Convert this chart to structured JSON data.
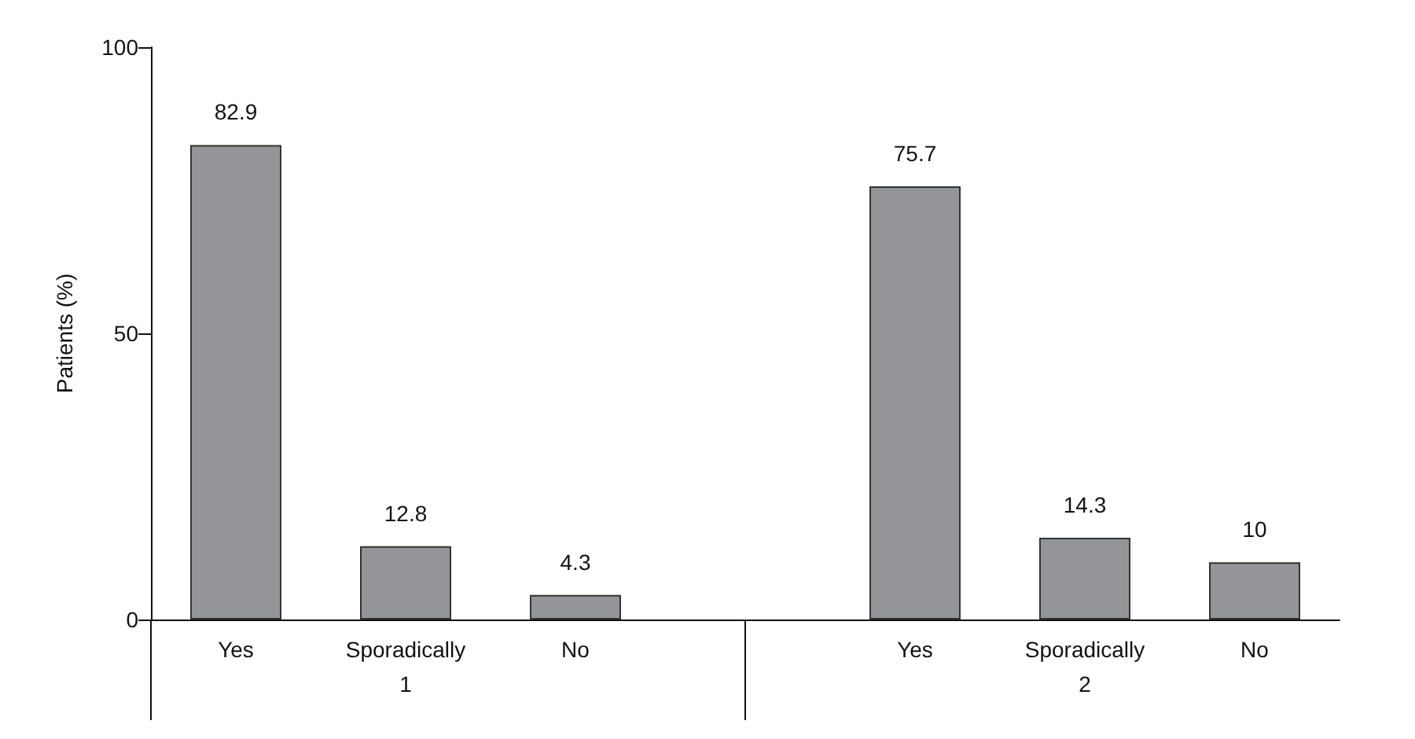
{
  "chart_data": {
    "type": "bar",
    "ylabel": "Patients (%)",
    "categories": [
      "Yes",
      "Sporadically",
      "No",
      null,
      "Yes",
      "Sporadically",
      "No"
    ],
    "values": [
      82.9,
      12.8,
      4.3,
      null,
      75.7,
      14.3,
      10
    ],
    "color": "#939598",
    "ylim": [
      0,
      100
    ],
    "yticks": [
      0,
      50,
      100
    ],
    "grid": false,
    "data_labels": true,
    "annotations": [
      "1",
      "2"
    ]
  }
}
